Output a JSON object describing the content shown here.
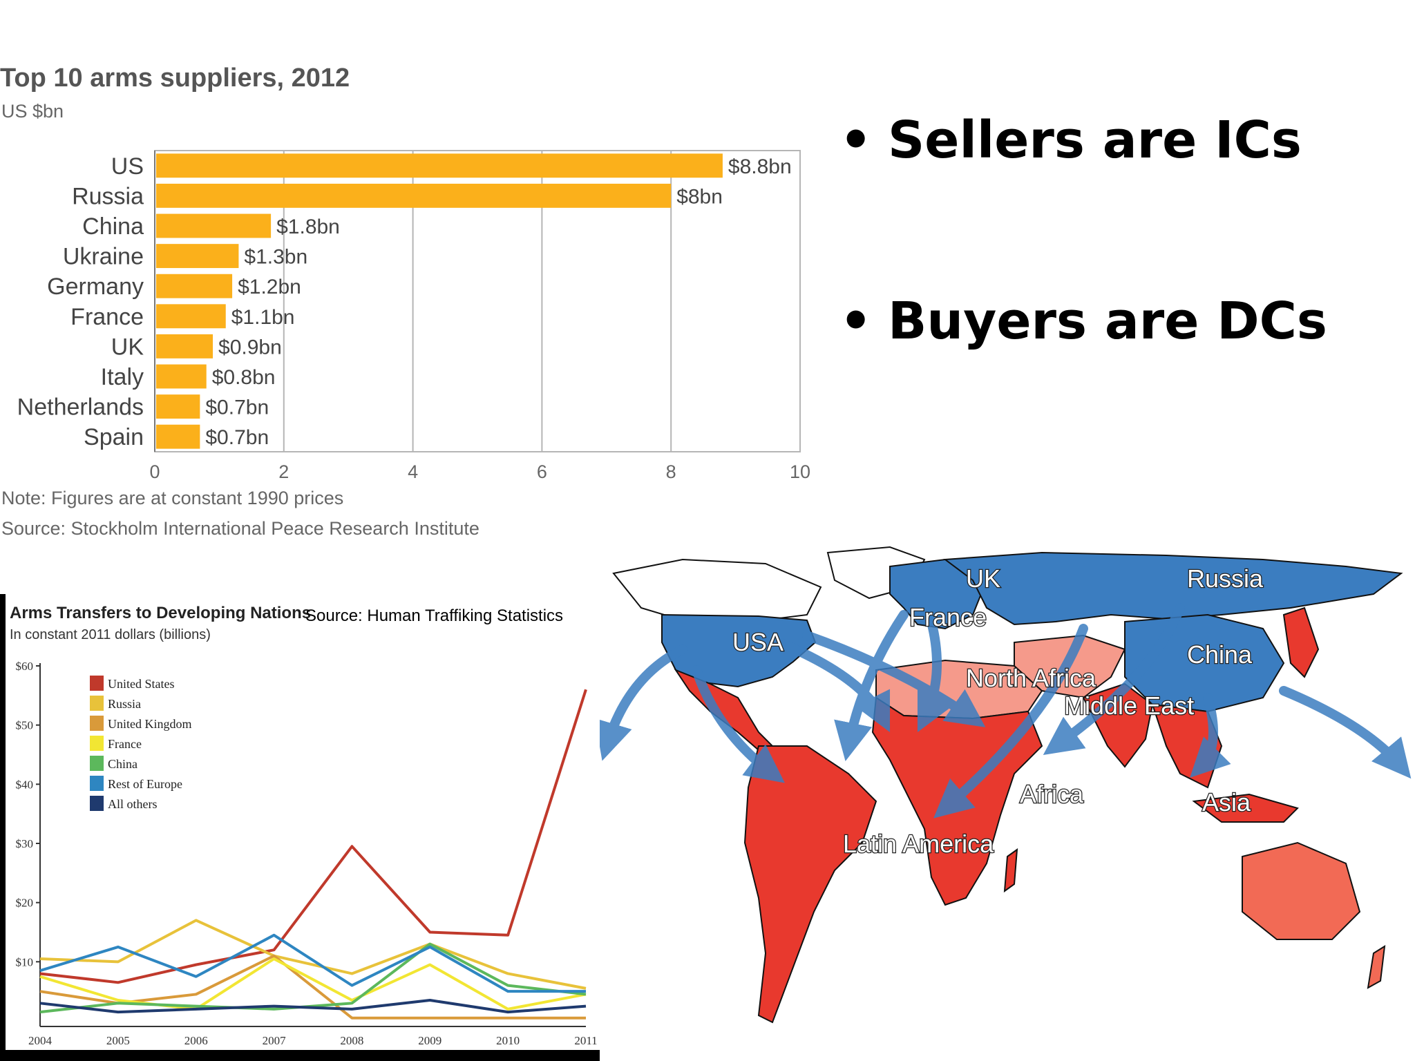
{
  "bullets": [
    {
      "marker": "•",
      "text": "Sellers are ICs"
    },
    {
      "marker": "•",
      "text": "Buyers are DCs"
    }
  ],
  "colors": {
    "bar": "#fbb01b",
    "seller_region": "#3b7dc0",
    "buyer_region": "#e8392e",
    "buyer_light": "#f59a8b"
  },
  "chart_data": [
    {
      "type": "bar",
      "orientation": "horizontal",
      "title": "Top 10 arms suppliers, 2012",
      "subtitle": "US $bn",
      "categories": [
        "US",
        "Russia",
        "China",
        "Ukraine",
        "Germany",
        "France",
        "UK",
        "Italy",
        "Netherlands",
        "Spain"
      ],
      "values": [
        8.8,
        8,
        1.8,
        1.3,
        1.2,
        1.1,
        0.9,
        0.8,
        0.7,
        0.7
      ],
      "data_labels": [
        "$8.8bn",
        "$8bn",
        "$1.8bn",
        "$1.3bn",
        "$1.2bn",
        "$1.1bn",
        "$0.9bn",
        "$0.8bn",
        "$0.7bn",
        "$0.7bn"
      ],
      "xlim": [
        0,
        10
      ],
      "xticks": [
        "0",
        "2",
        "4",
        "6",
        "8",
        "10"
      ],
      "grid": true,
      "note": "Note: Figures are at constant 1990 prices",
      "source": "Source: Stockholm International Peace Research Institute"
    },
    {
      "type": "line",
      "title": "Arms Transfers to Developing Nations",
      "subtitle": "In constant 2011 dollars (billions)",
      "source_label": "Source: Human Traffiking Statistics",
      "x": [
        "2004",
        "2005",
        "2006",
        "2007",
        "2008",
        "2009",
        "2010",
        "2011"
      ],
      "yticks": [
        "$60",
        "$50",
        "$40",
        "$30",
        "$20",
        "$10"
      ],
      "ylim": [
        0,
        60
      ],
      "legend_position": "top-left",
      "series": [
        {
          "name": "United States",
          "color": "#c0392b",
          "values": [
            8,
            6.5,
            9.5,
            12,
            29.5,
            15,
            14.5,
            56
          ]
        },
        {
          "name": "Russia",
          "color": "#e8c23a",
          "values": [
            10.5,
            10,
            17,
            11,
            8,
            13,
            8,
            5.5
          ]
        },
        {
          "name": "United Kingdom",
          "color": "#d99a3a",
          "values": [
            5,
            3,
            4.5,
            11,
            0.5,
            0.5,
            0.5,
            0.5
          ]
        },
        {
          "name": "France",
          "color": "#f2e633",
          "values": [
            7.5,
            3.5,
            2,
            10.5,
            3.5,
            9.5,
            2,
            4.5
          ]
        },
        {
          "name": "China",
          "color": "#5cb85c",
          "values": [
            1.5,
            3,
            2.5,
            2,
            3,
            13,
            6,
            4.5
          ]
        },
        {
          "name": "Rest of Europe",
          "color": "#2e86c1",
          "values": [
            8.5,
            12.5,
            7.5,
            14.5,
            6,
            12.5,
            5,
            5
          ]
        },
        {
          "name": "All others",
          "color": "#1f3a6e",
          "values": [
            3,
            1.5,
            2,
            2.5,
            2,
            3.5,
            1.5,
            2.5
          ]
        }
      ]
    }
  ],
  "map": {
    "sellers": [
      "Russia",
      "UK",
      "France",
      "USA",
      "China"
    ],
    "buyers": [
      "North Africa",
      "Middle East",
      "Africa",
      "Latin America",
      "Asia"
    ],
    "labels": {
      "russia": "Russia",
      "uk": "UK",
      "france": "France",
      "usa": "USA",
      "china": "China",
      "north_africa": "North Africa",
      "middle_east": "Middle East",
      "africa": "Africa",
      "latin_america": "Latin America",
      "asia": "Asia"
    }
  }
}
